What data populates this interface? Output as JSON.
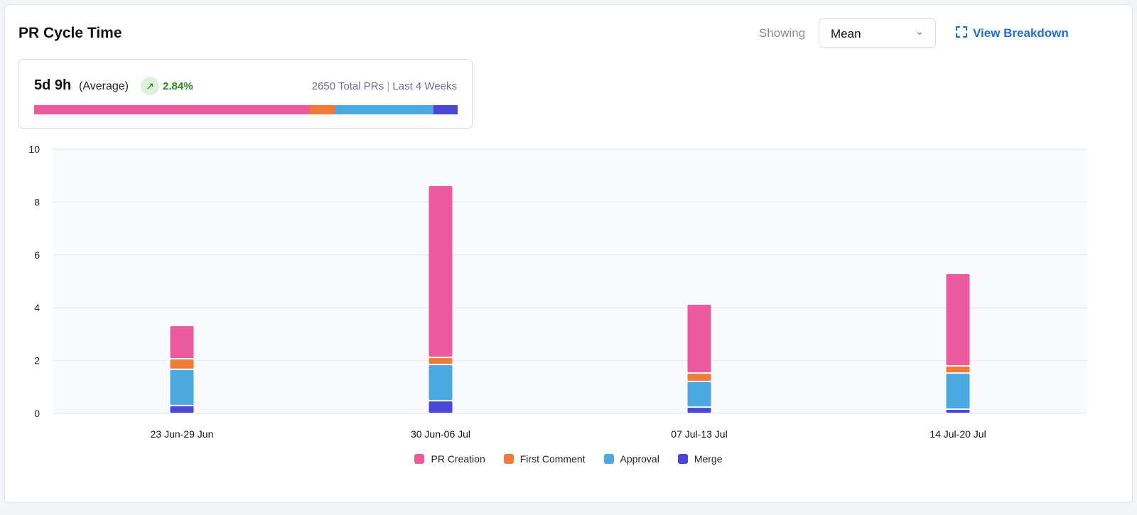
{
  "header": {
    "title": "PR Cycle Time",
    "showing_label": "Showing",
    "select_value": "Mean",
    "view_breakdown": "View Breakdown"
  },
  "summary": {
    "value": "5d 9h",
    "value_label": "(Average)",
    "trend_icon": "arrow-up-right-icon",
    "trend_glyph": "↗",
    "change": "2.84%",
    "total": "2650 Total PRs",
    "separator": "|",
    "period": "Last 4 Weeks",
    "breakdown": [
      {
        "name": "PR Creation",
        "share": 0.651
      },
      {
        "name": "First Comment",
        "share": 0.059
      },
      {
        "name": "Approval",
        "share": 0.233
      },
      {
        "name": "Merge",
        "share": 0.057
      }
    ]
  },
  "colors": {
    "PR Creation": "#ec5a9e",
    "First Comment": "#ef7b3b",
    "Approval": "#4ba9e0",
    "Merge": "#4b47d6"
  },
  "chart_data": {
    "type": "bar",
    "stacked": true,
    "categories": [
      "23 Jun-29 Jun",
      "30 Jun-06 Jul",
      "07 Jul-13 Jul",
      "14 Jul-20 Jul"
    ],
    "series": [
      {
        "name": "Merge",
        "values": [
          0.3,
          0.48,
          0.24,
          0.16
        ]
      },
      {
        "name": "Approval",
        "values": [
          1.37,
          1.37,
          0.97,
          1.37
        ]
      },
      {
        "name": "First Comment",
        "values": [
          0.4,
          0.27,
          0.32,
          0.27
        ]
      },
      {
        "name": "PR Creation",
        "values": [
          1.26,
          6.51,
          2.61,
          3.5
        ]
      }
    ],
    "ylim": [
      0,
      10
    ],
    "yticks": [
      "0",
      "2",
      "4",
      "6",
      "8",
      "10"
    ],
    "grid": true,
    "legend": "bottom",
    "legend_order": [
      "PR Creation",
      "First Comment",
      "Approval",
      "Merge"
    ]
  }
}
